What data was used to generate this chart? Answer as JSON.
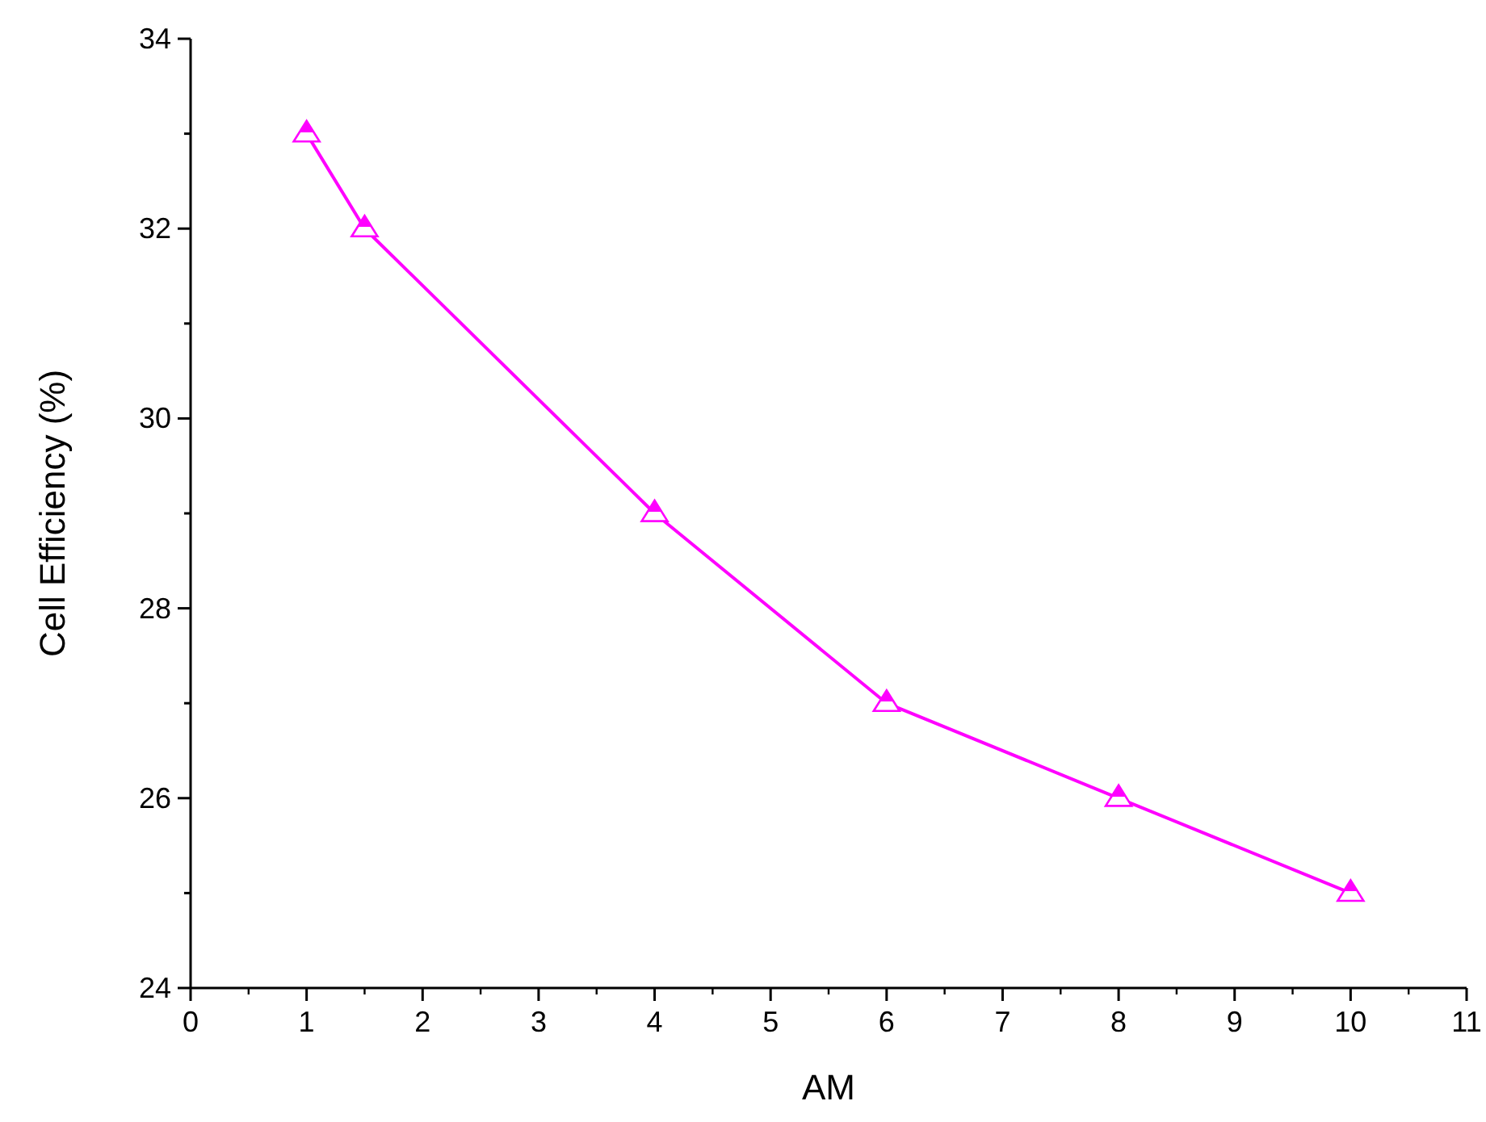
{
  "chart_data": {
    "type": "line",
    "xlabel": "AM",
    "ylabel": "Cell Efficiency (%)",
    "x": [
      1,
      1.5,
      4,
      6,
      8,
      10
    ],
    "series": [
      {
        "color": "#ff00ff",
        "values": [
          33,
          32,
          29,
          27,
          26,
          25
        ]
      }
    ],
    "xlim": [
      0,
      11
    ],
    "xticks": [
      0,
      1,
      2,
      3,
      4,
      5,
      6,
      7,
      8,
      9,
      10,
      11
    ],
    "ylim": [
      24,
      34
    ],
    "yticks": [
      24,
      {
        "value": 25,
        "label": null
      },
      26,
      {
        "value": 27,
        "label": null
      },
      28,
      {
        "value": 29,
        "label": null
      },
      30,
      {
        "value": 31,
        "label": null
      },
      32,
      {
        "value": 33,
        "label": null
      },
      34
    ],
    "marker": "triangle",
    "line_style": "solid",
    "grid": false
  }
}
